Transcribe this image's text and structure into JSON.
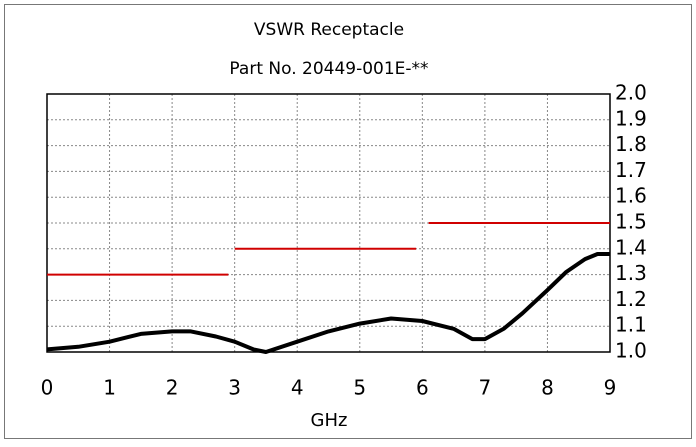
{
  "chart_data": {
    "type": "line",
    "title": "VSWR Receptacle",
    "subtitle": "Part No. 20449-001E-**",
    "xlabel": "GHz",
    "xlim": [
      0,
      9
    ],
    "xticks": [
      0,
      1,
      2,
      3,
      4,
      5,
      6,
      7,
      8,
      9
    ],
    "ylim": [
      1,
      2
    ],
    "yticks": [
      {
        "value": 1,
        "label": "1.0"
      },
      1.1,
      1.2,
      1.3,
      1.4,
      1.5,
      1.6,
      1.7,
      1.8,
      1.9,
      {
        "value": 2,
        "label": "2.0"
      }
    ],
    "grid": true,
    "series": [
      {
        "color": "#000000",
        "x": [
          0,
          0.5,
          1,
          1.5,
          2,
          2.3,
          2.7,
          3,
          3.3,
          3.5,
          4,
          4.5,
          5,
          5.5,
          6,
          6.5,
          6.8,
          7,
          7.3,
          7.6,
          8,
          8.3,
          8.6,
          8.8,
          9
        ],
        "values": [
          1.01,
          1.02,
          1.04,
          1.07,
          1.08,
          1.08,
          1.06,
          1.04,
          1.01,
          1.0,
          1.04,
          1.08,
          1.11,
          1.13,
          1.12,
          1.09,
          1.05,
          1.05,
          1.09,
          1.15,
          1.24,
          1.31,
          1.36,
          1.38,
          1.38
        ]
      },
      {
        "color": "#d00000",
        "x": [
          0,
          2.9
        ],
        "values": [
          1.3,
          1.3
        ]
      },
      {
        "color": "#d00000",
        "x": [
          3,
          5.9
        ],
        "values": [
          1.4,
          1.4
        ]
      },
      {
        "color": "#d00000",
        "x": [
          6.1,
          9
        ],
        "values": [
          1.5,
          1.5
        ]
      }
    ]
  }
}
